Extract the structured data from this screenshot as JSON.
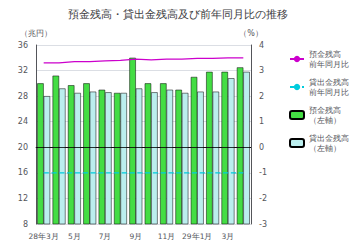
{
  "chart_data": {
    "type": "bar",
    "title": "預金残高・貸出金残高及び前年同月比の推移",
    "ylabel": "（兆円）",
    "y2label": "（%）",
    "categories": [
      "28年3月",
      null,
      "5月",
      null,
      "7月",
      null,
      "9月",
      null,
      "11月",
      null,
      "29年1月",
      null,
      "3月",
      null
    ],
    "series": [
      {
        "name": "預金残高\n（左軸）",
        "type": "bar",
        "color": "#44dd44",
        "values": [
          30.0,
          31.2,
          29.7,
          30.0,
          29.0,
          28.5,
          34.0,
          30.0,
          30.0,
          29.0,
          31.0,
          31.8,
          31.8,
          32.5
        ]
      },
      {
        "name": "貸出金残高\n（左軸）",
        "type": "bar",
        "color": "#bbeeee",
        "values": [
          28.0,
          29.2,
          28.5,
          28.7,
          28.6,
          28.5,
          29.2,
          28.6,
          29.0,
          28.5,
          28.7,
          28.7,
          30.8,
          31.8
        ]
      },
      {
        "name": "預金残高\n前年同月比",
        "type": "line",
        "axis": "y2",
        "color": "#cc00cc",
        "line_style": "solid",
        "values": [
          3.3,
          3.3,
          3.35,
          3.35,
          3.38,
          3.4,
          3.45,
          3.42,
          3.45,
          3.45,
          3.48,
          3.48,
          3.5,
          3.5
        ]
      },
      {
        "name": "貸出金残高\n前年同月比",
        "type": "line",
        "axis": "y2",
        "color": "#00ccdd",
        "line_style": "dashed",
        "values": [
          -1.0,
          -1.0,
          -1.0,
          -1.0,
          -1.0,
          -1.0,
          -1.0,
          -1.0,
          -1.0,
          -1.0,
          -1.0,
          -1.0,
          -1.0,
          -1.0
        ]
      }
    ],
    "legend_order": [
      "預金残高\n前年同月比",
      "貸出金残高\n前年同月比",
      "預金残高\n（左軸）",
      "貸出金残高\n（左軸）"
    ],
    "hline": 20,
    "ylim": [
      8,
      36
    ],
    "yticks": [
      8,
      12,
      16,
      20,
      24,
      28,
      32,
      36
    ],
    "y2lim": [
      -3,
      4
    ],
    "y2ticks": [
      -3,
      -2,
      -1,
      0,
      1,
      2,
      3,
      4
    ],
    "grid": true,
    "legend": "right"
  }
}
